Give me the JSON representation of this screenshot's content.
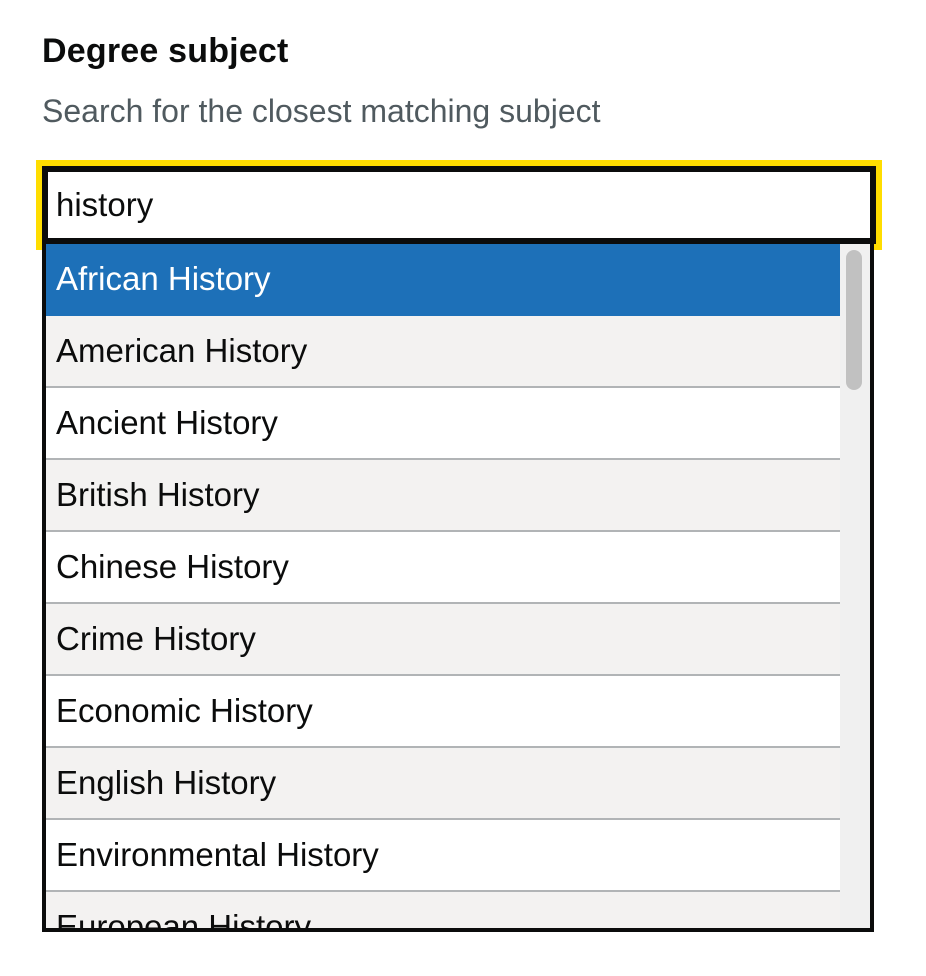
{
  "field": {
    "label": "Degree subject",
    "hint": "Search for the closest matching subject",
    "value": "history"
  },
  "colors": {
    "focus": "#ffdd00",
    "selected": "#1d70b8",
    "row_alt": "#f3f2f1"
  },
  "results": {
    "selected_index": 0,
    "items": [
      "African History",
      "American History",
      "Ancient History",
      "British History",
      "Chinese History",
      "Crime History",
      "Economic History",
      "English History",
      "Environmental History",
      "European History"
    ]
  }
}
